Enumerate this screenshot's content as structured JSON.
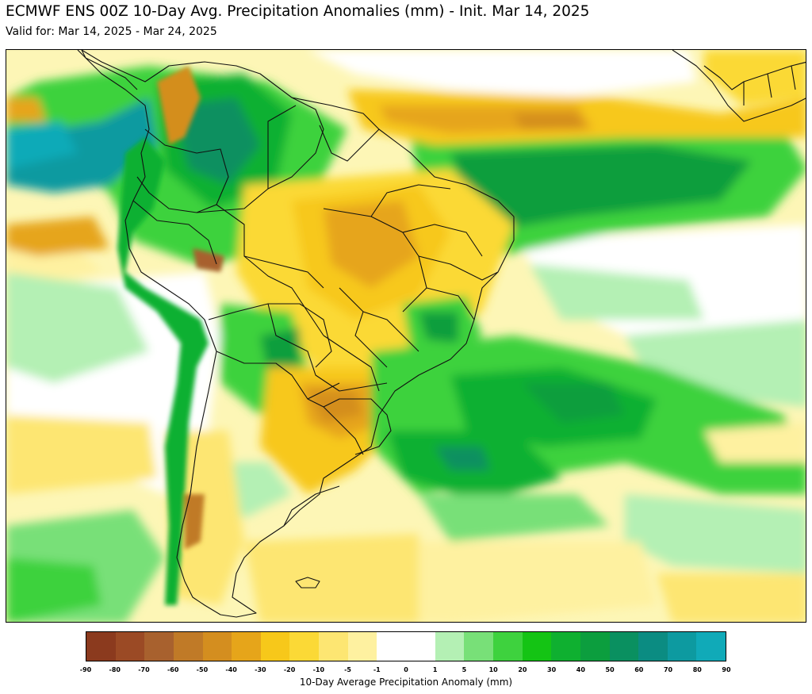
{
  "title": "ECMWF ENS 00Z 10-Day Avg. Precipitation Anomalies (mm) - Init. Mar 14, 2025",
  "subtitle": "Valid for: Mar 14, 2025 - Mar 24, 2025",
  "colorbar": {
    "label": "10-Day Average Precipitation Anomaly (mm)",
    "ticks": [
      "-90",
      "-80",
      "-70",
      "-60",
      "-50",
      "-40",
      "-30",
      "-20",
      "-10",
      "-5",
      "-1",
      "0",
      "1",
      "5",
      "10",
      "20",
      "30",
      "40",
      "50",
      "60",
      "70",
      "80",
      "90"
    ],
    "colors": [
      "#8b3a1e",
      "#9b4a25",
      "#a8612e",
      "#c07a27",
      "#d48e1f",
      "#e6a51a",
      "#f7c81a",
      "#fbd936",
      "#fde672",
      "#fef1a0",
      "#ffffff",
      "#ffffff",
      "#b4f0b4",
      "#78e078",
      "#3ed23e",
      "#14c414",
      "#0fb030",
      "#0c9e3e",
      "#0a9060",
      "#0b8c82",
      "#0d9aa0",
      "#10aab8"
    ]
  },
  "map": {
    "background_color": "#fdfbe0"
  }
}
